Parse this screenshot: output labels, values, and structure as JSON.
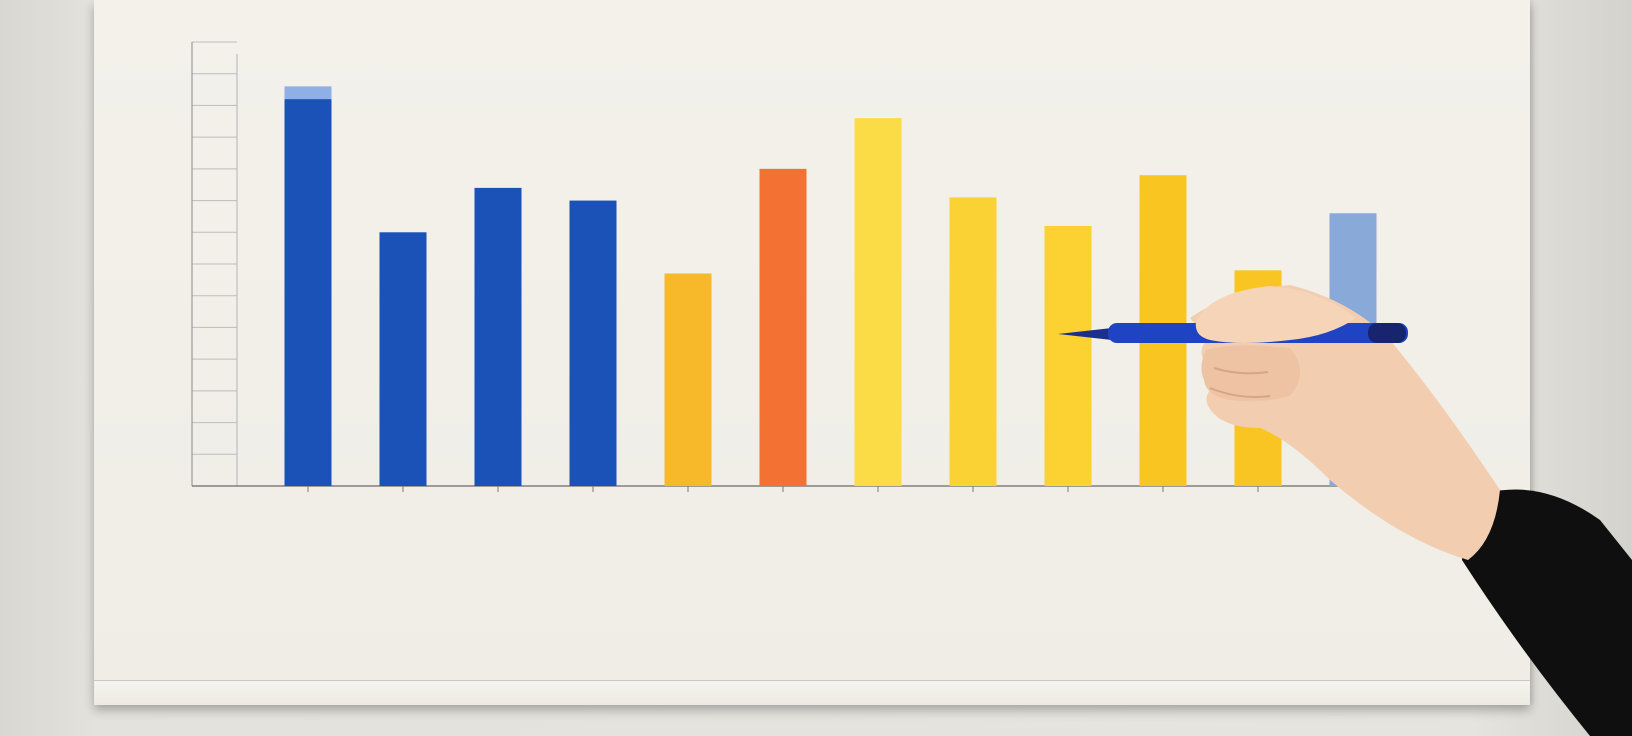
{
  "chart_data": {
    "type": "bar",
    "title": "",
    "xlabel": "",
    "ylabel": "",
    "ylim": [
      0,
      14
    ],
    "ytick_values": [
      1,
      2,
      3,
      4,
      5,
      6,
      7,
      8,
      9,
      10,
      11,
      12,
      13,
      14
    ],
    "grid": false,
    "legend": "none",
    "values": [
      12.2,
      8.0,
      9.4,
      9.0,
      6.7,
      10.0,
      11.6,
      9.1,
      8.2,
      9.8,
      6.8,
      8.6
    ],
    "colors": [
      "#1a52b8",
      "#1a52b8",
      "#1a52b8",
      "#1a52b8",
      "#f7b92a",
      "#f37133",
      "#fbdc46",
      "#fbd234",
      "#fbd232",
      "#f9c521",
      "#f8c523",
      "#89a9d9"
    ],
    "cap_values": [
      12.6,
      null,
      null,
      null,
      null,
      null,
      null,
      null,
      null,
      null,
      null,
      null
    ],
    "cap_color": "#8eb0e6"
  }
}
